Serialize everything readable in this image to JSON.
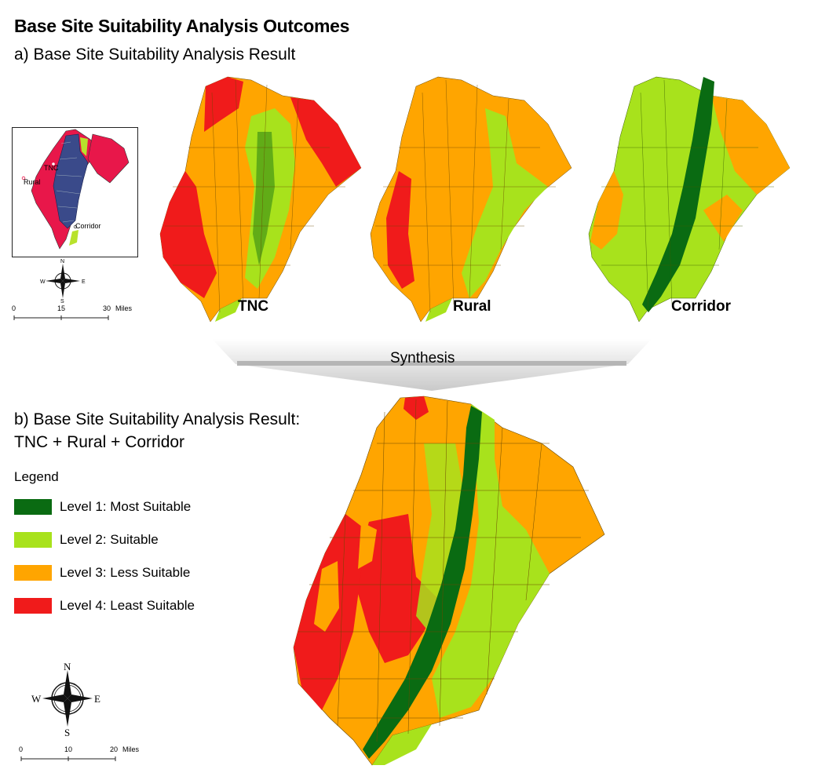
{
  "title": "Base Site Suitability Analysis Outcomes",
  "section_a": {
    "heading": "a) Base Site Suitability Analysis Result"
  },
  "section_b": {
    "heading_line1": "b) Base Site Suitability Analysis Result:",
    "heading_line2": "TNC + Rural + Corridor"
  },
  "maps": {
    "tnc_label": "TNC",
    "rural_label": "Rural",
    "corridor_label": "Corridor"
  },
  "synthesis": {
    "label": "Synthesis"
  },
  "inset": {
    "tnc": "TNC",
    "rural": "Rural",
    "corridor": "Corridor"
  },
  "legend": {
    "title": "Legend",
    "items": [
      {
        "label": "Level 1: Most Suitable",
        "color": "#0a6b12"
      },
      {
        "label": "Level 2: Suitable",
        "color": "#a8e21c"
      },
      {
        "label": "Level 3: Less Suitable",
        "color": "#ffa500"
      },
      {
        "label": "Level 4: Least Suitable",
        "color": "#f01b1b"
      }
    ]
  },
  "compass": {
    "n": "N",
    "s": "S",
    "e": "E",
    "w": "W"
  },
  "scale_small": {
    "t0": "0",
    "t1": "15",
    "t2": "30",
    "unit": "Miles"
  },
  "scale_large": {
    "t0": "0",
    "t1": "10",
    "t2": "20",
    "unit": "Miles"
  },
  "colors": {
    "level1": "#0a6b12",
    "level2": "#a8e21c",
    "level3": "#ffa500",
    "level4": "#f01b1b",
    "inset_fill": "#e8174a",
    "inset_core": "#3a4a8a"
  }
}
